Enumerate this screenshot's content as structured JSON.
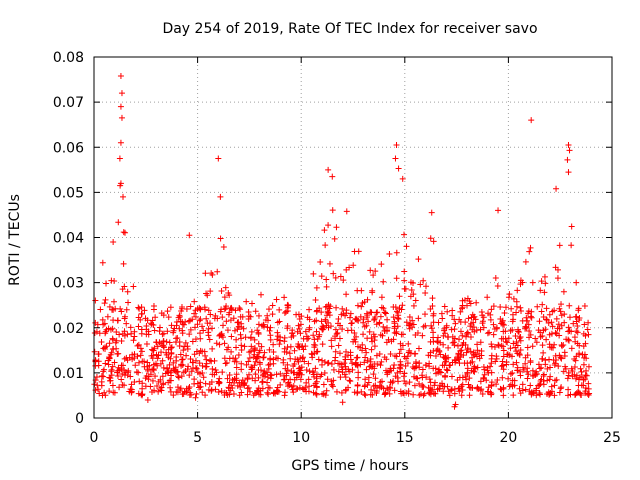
{
  "chart_data": {
    "type": "scatter",
    "title": "Day 254 of 2019, Rate Of TEC Index for receiver savo",
    "xlabel": "GPS time / hours",
    "ylabel": "ROTI / TECUs",
    "xlim": [
      0,
      25
    ],
    "ylim": [
      0,
      0.08
    ],
    "xticks": [
      0,
      5,
      10,
      15,
      20,
      25
    ],
    "xtick_labels": [
      "0",
      "5",
      "10",
      "15",
      "20",
      "25"
    ],
    "yticks": [
      0,
      0.01,
      0.02,
      0.03,
      0.04,
      0.05,
      0.06,
      0.07,
      0.08
    ],
    "ytick_labels": [
      "0",
      "0.01",
      "0.02",
      "0.03",
      "0.04",
      "0.05",
      "0.06",
      "0.07",
      "0.08"
    ],
    "grid": true,
    "marker": "+",
    "color": "#ff0000",
    "series": [
      {
        "name": "ROTI",
        "x_range": [
          0.0,
          23.9
        ],
        "baseline_band": [
          0.005,
          0.025
        ],
        "activity_envelope": [
          [
            0.0,
            0.026
          ],
          [
            0.3,
            0.038
          ],
          [
            0.8,
            0.033
          ],
          [
            1.2,
            0.058
          ],
          [
            1.5,
            0.046
          ],
          [
            2.0,
            0.025
          ],
          [
            2.5,
            0.027
          ],
          [
            3.0,
            0.022
          ],
          [
            3.5,
            0.018
          ],
          [
            4.0,
            0.02
          ],
          [
            4.5,
            0.022
          ],
          [
            5.2,
            0.036
          ],
          [
            5.8,
            0.034
          ],
          [
            6.2,
            0.048
          ],
          [
            6.6,
            0.03
          ],
          [
            7.2,
            0.028
          ],
          [
            7.8,
            0.025
          ],
          [
            8.4,
            0.036
          ],
          [
            9.0,
            0.03
          ],
          [
            9.5,
            0.024
          ],
          [
            10.0,
            0.023
          ],
          [
            10.5,
            0.032
          ],
          [
            11.0,
            0.045
          ],
          [
            11.4,
            0.052
          ],
          [
            12.0,
            0.036
          ],
          [
            12.5,
            0.04
          ],
          [
            13.0,
            0.036
          ],
          [
            13.5,
            0.032
          ],
          [
            14.0,
            0.038
          ],
          [
            14.5,
            0.052
          ],
          [
            14.9,
            0.044
          ],
          [
            15.3,
            0.032
          ],
          [
            15.8,
            0.038
          ],
          [
            16.3,
            0.044
          ],
          [
            16.8,
            0.028
          ],
          [
            17.3,
            0.024
          ],
          [
            17.8,
            0.028
          ],
          [
            18.3,
            0.025
          ],
          [
            18.8,
            0.027
          ],
          [
            19.4,
            0.035
          ],
          [
            19.8,
            0.032
          ],
          [
            20.4,
            0.03
          ],
          [
            20.9,
            0.04
          ],
          [
            21.5,
            0.033
          ],
          [
            22.0,
            0.03
          ],
          [
            22.5,
            0.04
          ],
          [
            22.9,
            0.054
          ],
          [
            23.3,
            0.03
          ],
          [
            23.9,
            0.02
          ]
        ],
        "notable_points": [
          {
            "x": 1.3,
            "y": 0.0758
          },
          {
            "x": 1.35,
            "y": 0.072
          },
          {
            "x": 1.3,
            "y": 0.069
          },
          {
            "x": 1.35,
            "y": 0.0665
          },
          {
            "x": 1.3,
            "y": 0.061
          },
          {
            "x": 1.25,
            "y": 0.0575
          },
          {
            "x": 1.3,
            "y": 0.052
          },
          {
            "x": 1.4,
            "y": 0.049
          },
          {
            "x": 4.6,
            "y": 0.0405
          },
          {
            "x": 6.0,
            "y": 0.0575
          },
          {
            "x": 6.1,
            "y": 0.049
          },
          {
            "x": 11.3,
            "y": 0.055
          },
          {
            "x": 11.5,
            "y": 0.0535
          },
          {
            "x": 12.2,
            "y": 0.0458
          },
          {
            "x": 14.6,
            "y": 0.0605
          },
          {
            "x": 14.55,
            "y": 0.0575
          },
          {
            "x": 14.7,
            "y": 0.0553
          },
          {
            "x": 14.9,
            "y": 0.053
          },
          {
            "x": 16.3,
            "y": 0.0455
          },
          {
            "x": 17.4,
            "y": 0.0025
          },
          {
            "x": 17.45,
            "y": 0.003
          },
          {
            "x": 19.5,
            "y": 0.046
          },
          {
            "x": 21.1,
            "y": 0.066
          },
          {
            "x": 22.9,
            "y": 0.0605
          },
          {
            "x": 22.95,
            "y": 0.0593
          },
          {
            "x": 22.85,
            "y": 0.0572
          },
          {
            "x": 22.9,
            "y": 0.0545
          },
          {
            "x": 22.3,
            "y": 0.0508
          },
          {
            "x": 2.6,
            "y": 0.004
          },
          {
            "x": 4.9,
            "y": 0.0045
          },
          {
            "x": 12.0,
            "y": 0.0035
          },
          {
            "x": 23.7,
            "y": 0.0055
          }
        ]
      }
    ]
  }
}
